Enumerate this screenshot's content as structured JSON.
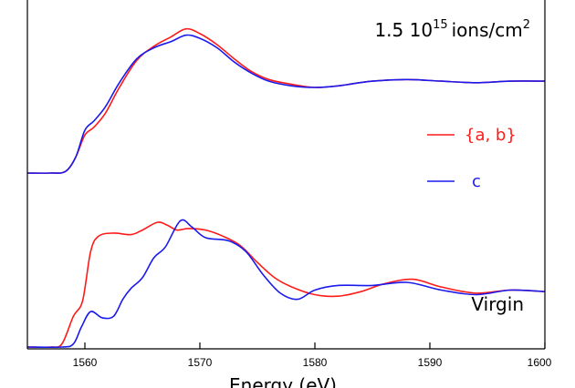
{
  "chart_data": {
    "type": "line",
    "title": "",
    "xlabel": "Energy (eV)",
    "ylabel": "",
    "xlim": [
      1555,
      1600
    ],
    "x_ticks": [
      1560,
      1570,
      1580,
      1590,
      1600
    ],
    "grid": false,
    "colors": {
      "ab": "#ff1a1a",
      "c": "#1a1aee",
      "axis": "#000000"
    },
    "legend": {
      "placement": "right",
      "entries": [
        {
          "name": "{a, b}",
          "color": "#ff1a1a"
        },
        {
          "name": "c",
          "color": "#1a1aee"
        }
      ]
    },
    "panels": [
      {
        "label_prefix": "1.5 10",
        "label_exponent": "15",
        "label_unit": "ions/cm",
        "label_unit_exponent": "2",
        "label_placement": "top-right",
        "y_range": [
          0,
          1
        ],
        "series": [
          {
            "name": "{a, b}",
            "color": "#ff1a1a",
            "x": [
              1555,
              1557,
              1558.3,
              1559.2,
              1560,
              1560.8,
              1561.8,
              1563,
              1564.5,
              1566,
              1567.5,
              1568.8,
              1570,
              1571.5,
              1573,
              1574.5,
              1576,
              1578,
              1580,
              1582,
              1585,
              1588,
              1591,
              1594,
              1597,
              1600
            ],
            "y": [
              0,
              0,
              0.01,
              0.1,
              0.24,
              0.29,
              0.38,
              0.54,
              0.71,
              0.8,
              0.86,
              0.91,
              0.88,
              0.81,
              0.72,
              0.64,
              0.59,
              0.56,
              0.54,
              0.55,
              0.58,
              0.59,
              0.58,
              0.57,
              0.58,
              0.58
            ]
          },
          {
            "name": "c",
            "color": "#1a1aee",
            "x": [
              1555,
              1557,
              1558.3,
              1559.2,
              1560,
              1560.8,
              1561.8,
              1563,
              1564.5,
              1566,
              1567.5,
              1568.8,
              1570,
              1571.5,
              1573,
              1574.5,
              1576,
              1578,
              1580,
              1582,
              1585,
              1588,
              1591,
              1594,
              1597,
              1600
            ],
            "y": [
              0,
              0,
              0.01,
              0.1,
              0.27,
              0.33,
              0.42,
              0.57,
              0.72,
              0.79,
              0.83,
              0.87,
              0.85,
              0.79,
              0.7,
              0.63,
              0.58,
              0.55,
              0.54,
              0.55,
              0.58,
              0.59,
              0.58,
              0.57,
              0.58,
              0.58
            ]
          }
        ]
      },
      {
        "label": "Virgin",
        "label_placement": "bottom-right",
        "y_range": [
          0,
          1
        ],
        "series": [
          {
            "name": "{a, b}",
            "color": "#ff1a1a",
            "x": [
              1555,
              1557,
              1558,
              1559,
              1559.8,
              1560.5,
              1561.2,
              1562.5,
              1564,
              1565,
              1566.3,
              1567.2,
              1568,
              1569,
              1570.5,
              1572,
              1573.5,
              1575,
              1576.5,
              1578,
              1580,
              1582,
              1584,
              1586,
              1588.5,
              1591,
              1594,
              1597,
              1600
            ],
            "y": [
              0,
              0,
              0.02,
              0.2,
              0.3,
              0.62,
              0.72,
              0.74,
              0.73,
              0.76,
              0.81,
              0.79,
              0.76,
              0.77,
              0.76,
              0.72,
              0.66,
              0.55,
              0.45,
              0.39,
              0.34,
              0.33,
              0.36,
              0.41,
              0.44,
              0.39,
              0.35,
              0.37,
              0.36
            ]
          },
          {
            "name": "c",
            "color": "#1a1aee",
            "x": [
              1555,
              1558,
              1559,
              1559.7,
              1560.5,
              1561.5,
              1562.5,
              1563.3,
              1564,
              1565,
              1566,
              1567,
              1568.3,
              1569.3,
              1570.5,
              1572.5,
              1574,
              1575.5,
              1577,
              1578.5,
              1580,
              1582,
              1585,
              1588,
              1591,
              1594,
              1597,
              1600
            ],
            "y": [
              0,
              0,
              0.02,
              0.13,
              0.23,
              0.19,
              0.2,
              0.31,
              0.38,
              0.45,
              0.58,
              0.65,
              0.82,
              0.78,
              0.71,
              0.69,
              0.62,
              0.47,
              0.35,
              0.31,
              0.37,
              0.4,
              0.4,
              0.42,
              0.37,
              0.34,
              0.37,
              0.36
            ]
          }
        ]
      }
    ]
  }
}
